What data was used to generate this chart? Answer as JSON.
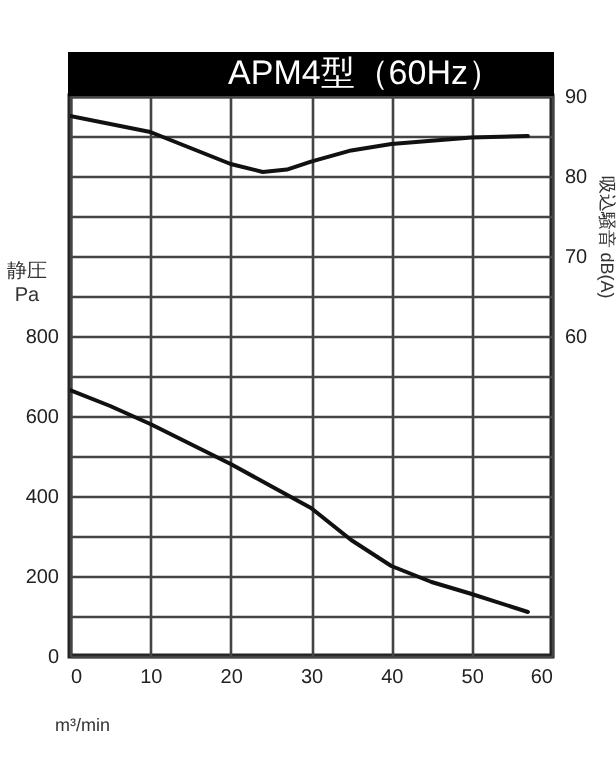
{
  "chart_data": {
    "type": "line",
    "title": "APM4型（60Hz）",
    "xlabel": "m³/min",
    "ylabel": "静圧 Pa",
    "y2label": "吸込騒音 dB(A)",
    "series": [
      {
        "color": "#111111",
        "x": [
          0,
          5,
          10,
          15,
          20,
          25,
          30,
          35,
          40,
          45,
          50,
          57
        ],
        "values": [
          665,
          625,
          580,
          530,
          480,
          425,
          370,
          290,
          225,
          185,
          155,
          110
        ]
      },
      {
        "color": "#111111",
        "axis": "y2",
        "x": [
          0,
          10,
          15,
          20,
          24,
          27,
          30,
          35,
          40,
          50,
          57
        ],
        "values": [
          87.5,
          85.5,
          83.5,
          81.5,
          80.5,
          80.8,
          81.8,
          83.2,
          84,
          84.8,
          85
        ]
      }
    ],
    "xlim": [
      0,
      60
    ],
    "xticks": [
      0,
      10,
      20,
      30,
      40,
      50,
      60
    ],
    "ylim": [
      0,
      1400
    ],
    "yticks": [
      0,
      {
        "value": 100,
        "label": null
      },
      200,
      {
        "value": 300,
        "label": null
      },
      400,
      {
        "value": 500,
        "label": null
      },
      600,
      {
        "value": 700,
        "label": null
      },
      800,
      {
        "value": 900,
        "label": null
      },
      {
        "value": 1000,
        "label": null
      },
      {
        "value": 1100,
        "label": null
      },
      {
        "value": 1200,
        "label": null
      },
      {
        "value": 1300,
        "label": null
      },
      {
        "value": 1400,
        "label": null
      }
    ],
    "y2lim": [
      20,
      90
    ],
    "y2ticks": [
      60,
      70,
      80,
      90
    ],
    "grid": true,
    "line_style": "solid",
    "marker": "none"
  }
}
